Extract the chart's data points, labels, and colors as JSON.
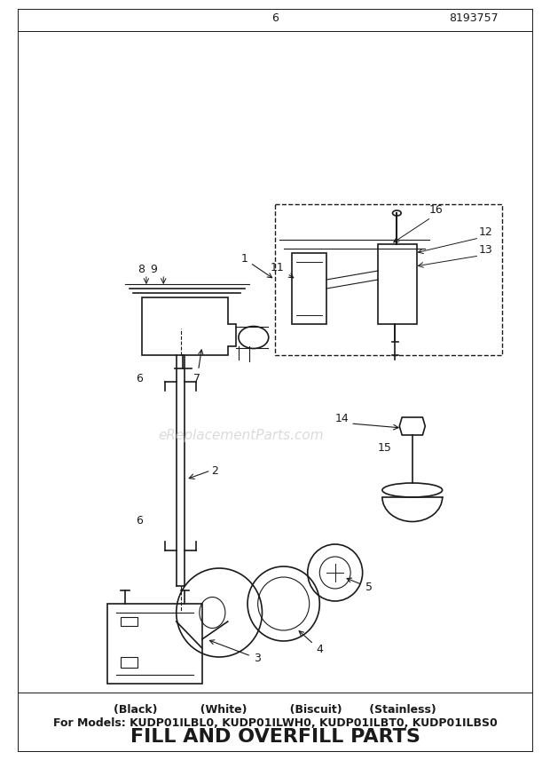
{
  "title": "FILL AND OVERFILL PARTS",
  "subtitle1": "For Models: KUDP01ILBL0, KUDP01ILWH0, KUDP01ILBT0, KUDP01ILBS0",
  "subtitle2": "(Black)           (White)           (Biscuit)       (Stainless)",
  "page_num": "6",
  "doc_num": "8193757",
  "watermark": "eReplacementParts.com",
  "bg_color": "#ffffff",
  "line_color": "#1a1a1a",
  "title_fontsize": 16,
  "subtitle_fontsize": 9,
  "label_fontsize": 9,
  "watermark_color": "#cccccc"
}
